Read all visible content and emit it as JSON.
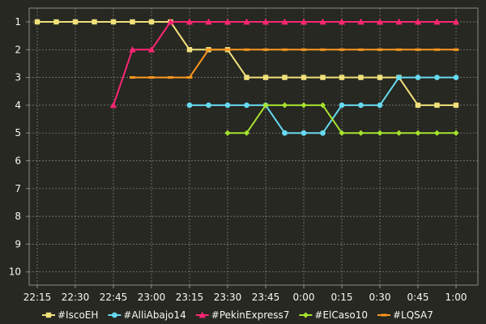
{
  "chart_data": {
    "type": "line",
    "title": "",
    "xlabel": "",
    "ylabel": "",
    "x": [
      "22:15",
      "22:22",
      "22:30",
      "22:37",
      "22:45",
      "22:52",
      "23:00",
      "23:07",
      "23:15",
      "23:22",
      "23:30",
      "23:37",
      "23:45",
      "23:52",
      "0:00",
      "0:07",
      "0:15",
      "0:22",
      "0:30",
      "0:37",
      "0:45",
      "0:52",
      "1:00"
    ],
    "x_tick_labels": [
      "22:15",
      "22:30",
      "22:45",
      "23:00",
      "23:15",
      "23:30",
      "23:45",
      "0:00",
      "0:15",
      "0:30",
      "0:45",
      "1:00"
    ],
    "y_tick_labels": [
      "1",
      "2",
      "3",
      "4",
      "5",
      "6",
      "7",
      "8",
      "9",
      "10"
    ],
    "ylim": [
      1,
      10
    ],
    "y_inverted": true,
    "grid": true,
    "legend_position": "bottom",
    "series": [
      {
        "name": "#IscoEH",
        "color": "#f0e07a",
        "marker": "square",
        "values": [
          1,
          1,
          1,
          1,
          1,
          1,
          1,
          1,
          2,
          2,
          2,
          3,
          3,
          3,
          3,
          3,
          3,
          3,
          3,
          3,
          4,
          4,
          4
        ]
      },
      {
        "name": "#AlliAbajo14",
        "color": "#66d9ef",
        "marker": "circle",
        "values": [
          null,
          null,
          null,
          null,
          null,
          null,
          null,
          null,
          4,
          4,
          4,
          4,
          4,
          5,
          5,
          5,
          4,
          4,
          4,
          3,
          3,
          3,
          3
        ]
      },
      {
        "name": "#PekinExpress7",
        "color": "#f92672",
        "marker": "triangle",
        "values": [
          null,
          null,
          null,
          null,
          4,
          2,
          2,
          1,
          1,
          1,
          1,
          1,
          1,
          1,
          1,
          1,
          1,
          1,
          1,
          1,
          1,
          1,
          1
        ]
      },
      {
        "name": "#ElCaso10",
        "color": "#a6e22e",
        "marker": "diamond",
        "values": [
          null,
          null,
          null,
          null,
          null,
          null,
          null,
          null,
          null,
          null,
          5,
          5,
          4,
          4,
          4,
          4,
          5,
          5,
          5,
          5,
          5,
          5,
          5
        ]
      },
      {
        "name": "#LQSA7",
        "color": "#fd971f",
        "marker": "line",
        "values": [
          null,
          null,
          null,
          null,
          null,
          3,
          3,
          3,
          3,
          2,
          2,
          2,
          2,
          2,
          2,
          2,
          2,
          2,
          2,
          2,
          2,
          2,
          2
        ]
      }
    ]
  }
}
